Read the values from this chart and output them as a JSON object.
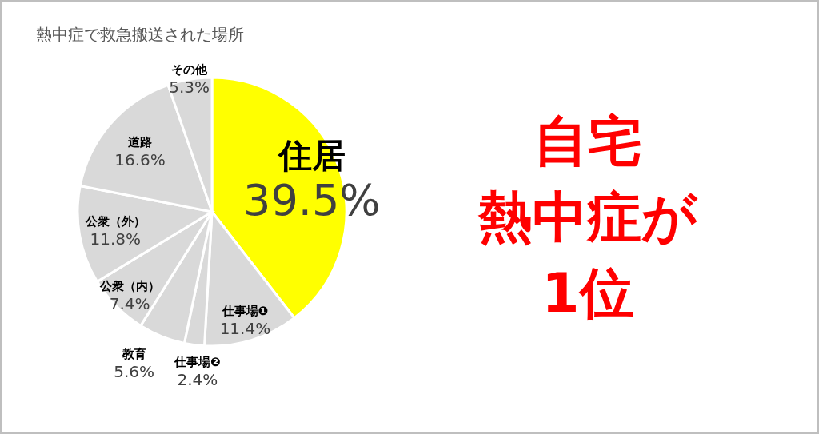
{
  "chart_data": {
    "type": "pie",
    "title": "熱中症で救急搬送された場所",
    "categories": [
      "住居",
      "仕事場❶",
      "仕事場❷",
      "教育",
      "公衆（内）",
      "公衆（外）",
      "道路",
      "その他"
    ],
    "values": [
      39.5,
      11.4,
      2.4,
      5.6,
      7.4,
      11.8,
      16.6,
      5.3
    ],
    "value_labels": [
      "39.5%",
      "11.4%",
      "2.4%",
      "5.6%",
      "7.4%",
      "11.8%",
      "16.6%",
      "5.3%"
    ],
    "colors": [
      "#ffff00",
      "#d9d9d9",
      "#d9d9d9",
      "#d9d9d9",
      "#d9d9d9",
      "#d9d9d9",
      "#d9d9d9",
      "#d9d9d9"
    ],
    "annotations": [
      "自宅",
      "熱中症が",
      "1位"
    ]
  }
}
